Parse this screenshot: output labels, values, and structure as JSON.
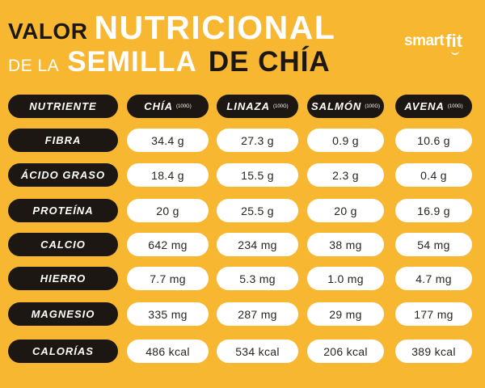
{
  "title": {
    "word_valor": "VALOR",
    "word_nutricional": "NUTRICIONAL",
    "word_de_la": "DE LA",
    "word_semilla": "SEMILLA",
    "word_de_chia": "DE CHÍA"
  },
  "logo": {
    "smart": "smart",
    "fit": "fit"
  },
  "header": {
    "nutrient_label": "NUTRIENTE",
    "columns": [
      {
        "name": "CHÍA",
        "unit": "(100G)"
      },
      {
        "name": "LINAZA",
        "unit": "(100G)"
      },
      {
        "name": "SALMÓN",
        "unit": "(100G)"
      },
      {
        "name": "AVENA",
        "unit": "(100G)"
      }
    ]
  },
  "rows": [
    {
      "nutrient": "FIBRA",
      "values": [
        "34.4 g",
        "27.3 g",
        "0.9 g",
        "10.6 g"
      ]
    },
    {
      "nutrient": "ÁCIDO GRASO",
      "values": [
        "18.4 g",
        "15.5 g",
        "2.3 g",
        "0.4 g"
      ]
    },
    {
      "nutrient": "PROTEÍNA",
      "values": [
        "20 g",
        "25.5 g",
        "20 g",
        "16.9 g"
      ]
    },
    {
      "nutrient": "CALCIO",
      "values": [
        "642 mg",
        "234 mg",
        "38 mg",
        "54 mg"
      ]
    },
    {
      "nutrient": "HIERRO",
      "values": [
        "7.7 mg",
        "5.3 mg",
        "1.0 mg",
        "4.7 mg"
      ]
    },
    {
      "nutrient": "MAGNESIO",
      "values": [
        "335 mg",
        "287 mg",
        "29 mg",
        "177 mg"
      ]
    },
    {
      "nutrient": "CALORÍAS",
      "values": [
        "486 kcal",
        "534 kcal",
        "206 kcal",
        "389 kcal"
      ]
    }
  ],
  "colors": {
    "background": "#F7B731",
    "dark": "#1c1712",
    "light": "#ffffff"
  }
}
